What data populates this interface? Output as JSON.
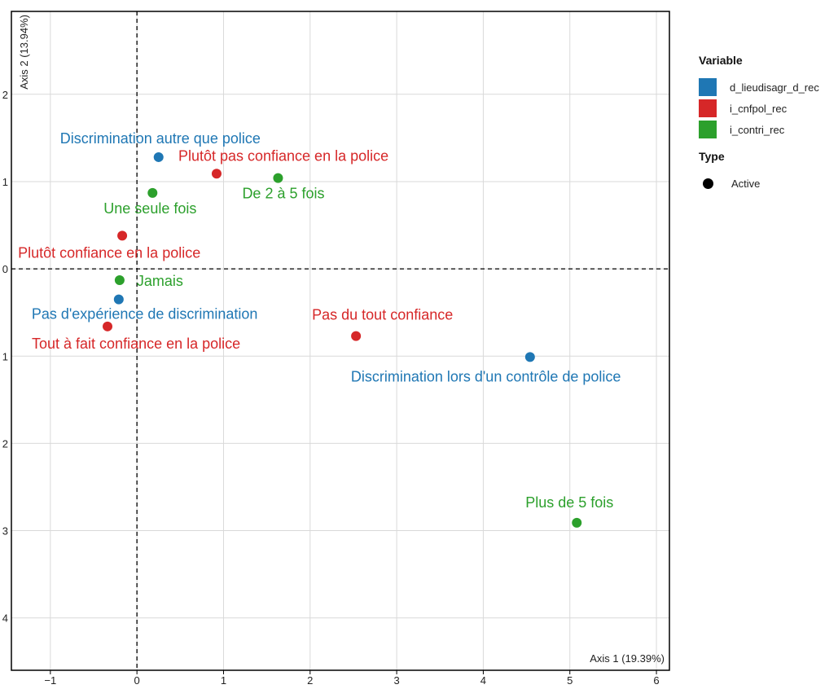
{
  "chart_data": {
    "type": "scatter",
    "xlabel": "Axis 1 (19.39%)",
    "ylabel": "Axis 2 (13.94%)",
    "xlim": [
      -1.45,
      6.15
    ],
    "ylim": [
      -4.6,
      2.95
    ],
    "x_ticks": [
      -1,
      0,
      1,
      2,
      3,
      4,
      5,
      6
    ],
    "x_tick_labels": [
      "−1",
      "0",
      "1",
      "2",
      "3",
      "4",
      "5",
      "6"
    ],
    "y_ticks": [
      2,
      1,
      0,
      -1,
      -2,
      -3,
      -4
    ],
    "y_tick_labels": [
      "2",
      "1",
      "0",
      "1",
      "2",
      "3",
      "4"
    ],
    "grid": true,
    "reference_lines": {
      "x": 0,
      "y": 0,
      "style": "dashed"
    },
    "legend_position": "right",
    "colors": {
      "d_lieudisagr_d_rec": "#1f77b4",
      "i_cnfpol_rec": "#d62728",
      "i_contri_rec": "#2ca02c"
    },
    "series": [
      {
        "name": "d_lieudisagr_d_rec",
        "points": [
          {
            "label": "Discrimination autre que police",
            "x": 0.25,
            "y": 1.28
          },
          {
            "label": "Pas d'expérience de discrimination",
            "x": -0.21,
            "y": -0.35
          },
          {
            "label": "Discrimination lors d'un contrôle de police",
            "x": 4.54,
            "y": -1.01
          }
        ]
      },
      {
        "name": "i_cnfpol_rec",
        "points": [
          {
            "label": "Plutôt pas confiance en la police",
            "x": 0.92,
            "y": 1.09
          },
          {
            "label": "Plutôt confiance en la police",
            "x": -0.17,
            "y": 0.38
          },
          {
            "label": "Tout à fait confiance en la police",
            "x": -0.34,
            "y": -0.66
          },
          {
            "label": "Pas du tout confiance",
            "x": 2.53,
            "y": -0.77
          }
        ]
      },
      {
        "name": "i_contri_rec",
        "points": [
          {
            "label": "De 2 à 5 fois",
            "x": 1.63,
            "y": 1.04
          },
          {
            "label": "Une seule fois",
            "x": 0.18,
            "y": 0.87
          },
          {
            "label": "Jamais",
            "x": -0.2,
            "y": -0.13
          },
          {
            "label": "Plus de 5 fois",
            "x": 5.08,
            "y": -2.91
          }
        ]
      }
    ]
  },
  "legend": {
    "variable_title": "Variable",
    "variable_items": [
      "d_lieudisagr_d_rec",
      "i_cnfpol_rec",
      "i_contri_rec"
    ],
    "type_title": "Type",
    "type_items": [
      "Active"
    ]
  }
}
